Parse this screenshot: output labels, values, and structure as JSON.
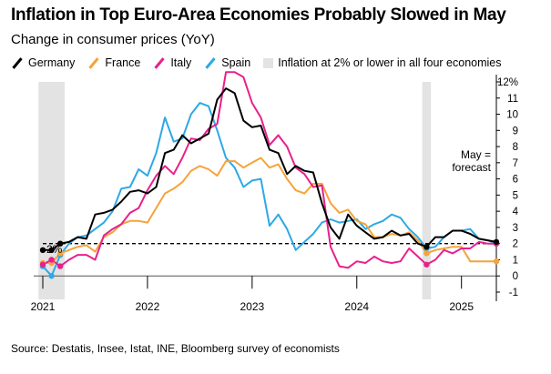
{
  "title": "Inflation in Top Euro-Area Economies Probably Slowed in May",
  "subtitle": "Change in consumer prices (YoY)",
  "source": "Source: Destatis, Insee, Istat, INE, Bloomberg survey of economists",
  "legend": [
    {
      "label": "Germany",
      "color": "#000000",
      "kind": "line"
    },
    {
      "label": "France",
      "color": "#f5a33a",
      "kind": "line"
    },
    {
      "label": "Italy",
      "color": "#e8208c",
      "kind": "line"
    },
    {
      "label": "Spain",
      "color": "#2ea8e6",
      "kind": "line"
    },
    {
      "label": "Inflation at 2% or lower in all four economies",
      "color": "#e3e3e3",
      "kind": "box"
    }
  ],
  "annotations": {
    "two_percent": "2%",
    "forecast": [
      "May =",
      "forecast"
    ]
  },
  "chart_data": {
    "type": "line",
    "x_start": "2021-01",
    "x_end": "2025-05",
    "x_unit": "month",
    "x_tick_labels": [
      "2021",
      "2022",
      "2023",
      "2024",
      "2025"
    ],
    "ylim": [
      -1,
      12
    ],
    "y_ticks": [
      -1,
      0,
      1,
      2,
      3,
      4,
      5,
      6,
      7,
      8,
      9,
      10,
      11,
      12
    ],
    "y_tick_labels": [
      "-1",
      "0",
      "1",
      "2",
      "3",
      "4",
      "5",
      "6",
      "7",
      "8",
      "9",
      "10",
      "11",
      "12%"
    ],
    "reference_line": 2,
    "shaded_periods": [
      [
        "2021-01",
        "2021-03"
      ],
      [
        "2024-09",
        "2024-09"
      ]
    ],
    "forecast_month": "2025-05",
    "series": [
      {
        "name": "Germany",
        "color": "#000000",
        "marker_points": [
          "2021-01",
          "2021-02",
          "2021-03",
          "2024-09",
          "2025-05"
        ],
        "values": [
          1.6,
          1.6,
          2.0,
          2.1,
          2.4,
          2.3,
          3.8,
          3.9,
          4.1,
          4.6,
          5.2,
          5.3,
          5.1,
          5.5,
          7.6,
          7.8,
          8.7,
          8.2,
          8.5,
          8.8,
          10.9,
          11.6,
          11.3,
          9.6,
          9.2,
          9.3,
          7.8,
          7.6,
          6.3,
          6.8,
          6.5,
          6.4,
          4.5,
          3.0,
          2.3,
          3.8,
          3.1,
          2.7,
          2.3,
          2.4,
          2.8,
          2.5,
          2.6,
          2.0,
          1.8,
          2.4,
          2.4,
          2.8,
          2.8,
          2.6,
          2.3,
          2.2,
          2.1
        ]
      },
      {
        "name": "France",
        "color": "#f5a33a",
        "marker_points": [
          "2021-01",
          "2021-02",
          "2021-03",
          "2024-09",
          "2025-05"
        ],
        "values": [
          0.8,
          0.8,
          1.4,
          1.6,
          1.8,
          1.9,
          1.5,
          2.4,
          2.7,
          3.2,
          3.4,
          3.4,
          3.3,
          4.2,
          5.1,
          5.4,
          5.8,
          6.5,
          6.8,
          6.6,
          6.2,
          7.1,
          7.1,
          6.7,
          7.0,
          7.3,
          6.7,
          6.9,
          6.0,
          5.3,
          5.1,
          5.7,
          5.7,
          4.5,
          3.9,
          4.1,
          3.4,
          3.2,
          2.4,
          2.4,
          2.6,
          2.5,
          2.7,
          2.2,
          1.4,
          1.6,
          1.7,
          1.8,
          1.8,
          0.9,
          0.9,
          0.9,
          0.9
        ]
      },
      {
        "name": "Italy",
        "color": "#e8208c",
        "marker_points": [
          "2021-01",
          "2021-02",
          "2021-03",
          "2024-09",
          "2025-05"
        ],
        "values": [
          0.7,
          1.0,
          0.6,
          1.0,
          1.3,
          1.3,
          1.0,
          2.5,
          2.9,
          3.2,
          3.9,
          4.2,
          5.3,
          6.2,
          6.8,
          6.3,
          7.3,
          8.5,
          8.4,
          9.1,
          9.4,
          12.6,
          12.6,
          12.3,
          10.7,
          9.8,
          8.1,
          8.7,
          8.0,
          6.7,
          6.3,
          5.5,
          5.6,
          1.8,
          0.6,
          0.5,
          0.9,
          0.8,
          1.2,
          0.9,
          0.8,
          0.9,
          1.7,
          1.2,
          0.7,
          1.0,
          1.6,
          1.4,
          1.7,
          1.7,
          2.1,
          2.0,
          2.0
        ]
      },
      {
        "name": "Spain",
        "color": "#2ea8e6",
        "marker_points": [
          "2021-01",
          "2021-02",
          "2021-03",
          "2024-09",
          "2025-05"
        ],
        "values": [
          0.6,
          0.0,
          1.3,
          2.0,
          2.4,
          2.5,
          2.9,
          3.3,
          4.0,
          5.4,
          5.5,
          6.6,
          6.2,
          7.6,
          9.8,
          8.3,
          8.5,
          10.0,
          10.7,
          10.5,
          9.0,
          7.3,
          6.7,
          5.5,
          5.9,
          6.0,
          3.1,
          3.8,
          2.9,
          1.6,
          2.1,
          2.6,
          3.3,
          3.5,
          3.3,
          3.4,
          3.5,
          2.9,
          3.2,
          3.4,
          3.8,
          3.6,
          2.9,
          2.4,
          1.7,
          1.8,
          2.4,
          2.8,
          2.8,
          2.9,
          2.3,
          2.2,
          2.0
        ]
      }
    ]
  }
}
